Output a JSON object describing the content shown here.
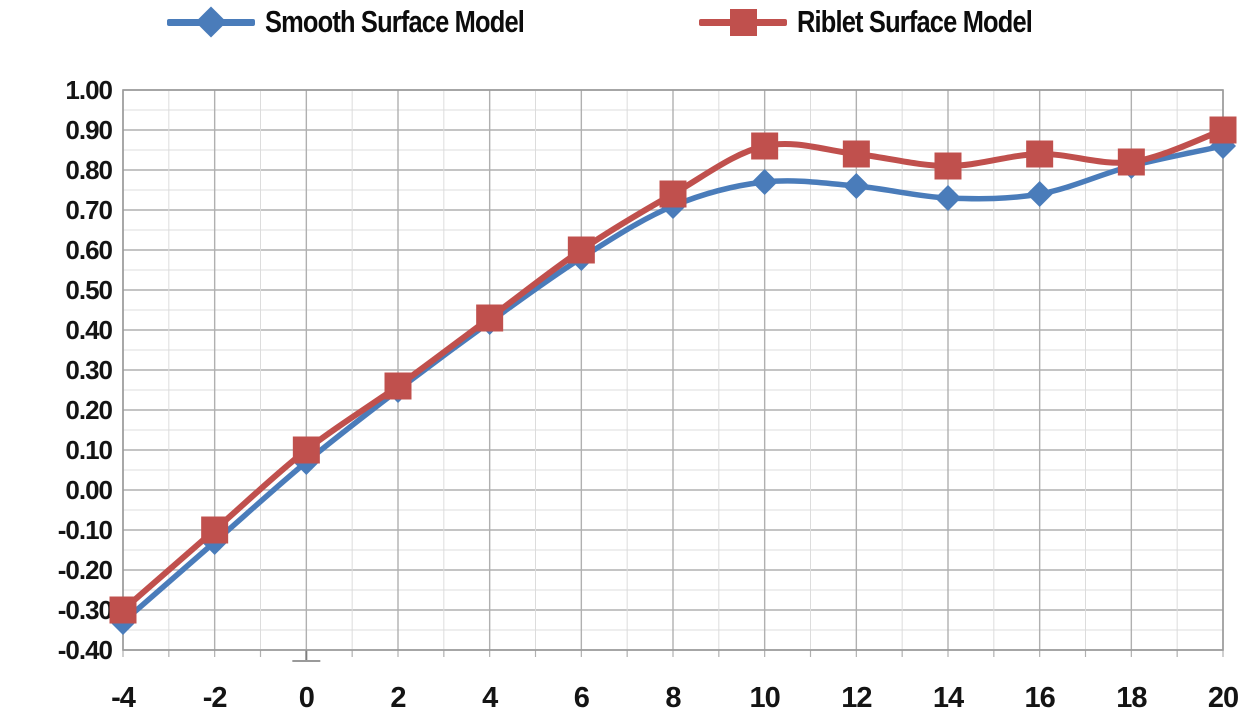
{
  "chart_data": {
    "type": "line",
    "title": "",
    "xlabel": "",
    "ylabel": "",
    "x": [
      -4,
      -2,
      0,
      2,
      4,
      6,
      8,
      10,
      12,
      14,
      16,
      18,
      20
    ],
    "series": [
      {
        "name": "Smooth Surface Model",
        "color": "#4a7cba",
        "marker": "diamond",
        "values": [
          -0.33,
          -0.13,
          0.07,
          0.25,
          0.42,
          0.58,
          0.71,
          0.77,
          0.76,
          0.73,
          0.74,
          0.81,
          0.86
        ]
      },
      {
        "name": "Riblet Surface Model",
        "color": "#c0504d",
        "marker": "square",
        "values": [
          -0.3,
          -0.1,
          0.1,
          0.26,
          0.43,
          0.6,
          0.74,
          0.86,
          0.84,
          0.81,
          0.84,
          0.82,
          0.9
        ]
      }
    ],
    "xlim": [
      -4,
      20
    ],
    "ylim": [
      -0.4,
      1.0
    ],
    "x_tick_step": 2,
    "y_tick_step": 0.1,
    "x_minor_step": 1,
    "y_minor_step": 0.05,
    "grid": "on",
    "legend_position": "top",
    "line_style": "smoothed",
    "x_tick_labels": [
      "-4",
      "-2",
      "0",
      "2",
      "4",
      "6",
      "8",
      "10",
      "12",
      "14",
      "16",
      "18",
      "20"
    ],
    "y_tick_labels": [
      "1.00",
      "0.90",
      "0.80",
      "0.70",
      "0.60",
      "0.50",
      "0.40",
      "0.30",
      "0.20",
      "0.10",
      "0.00",
      "-0.10",
      "-0.20",
      "-0.30",
      "-0.40"
    ]
  },
  "colors": {
    "minor_grid": "#dcdcdc",
    "major_grid": "#b0b0b0",
    "plot_border": "#9a9a9a",
    "tick_text": "#141414"
  }
}
